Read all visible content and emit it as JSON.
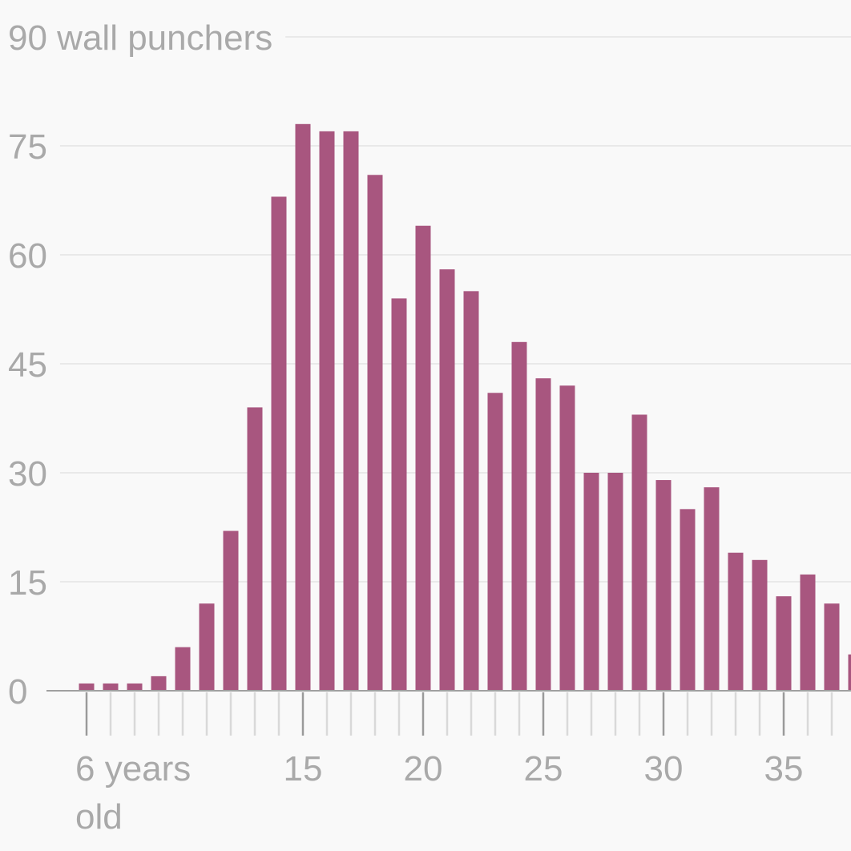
{
  "chart_data": {
    "type": "bar",
    "x": [
      6,
      7,
      8,
      9,
      10,
      11,
      12,
      13,
      14,
      15,
      16,
      17,
      18,
      19,
      20,
      21,
      22,
      23,
      24,
      25,
      26,
      27,
      28,
      29,
      30,
      31,
      32,
      33,
      34,
      35,
      36,
      37,
      38
    ],
    "values": [
      1,
      1,
      1,
      2,
      6,
      12,
      22,
      39,
      68,
      78,
      77,
      77,
      71,
      54,
      64,
      58,
      55,
      41,
      48,
      43,
      42,
      30,
      30,
      38,
      29,
      25,
      28,
      19,
      18,
      13,
      16,
      12,
      5
    ],
    "y_ticks": [
      0,
      15,
      30,
      45,
      60,
      75,
      90
    ],
    "y_tick_labels": [
      "0",
      "15",
      "30",
      "45",
      "60",
      "75",
      "90 wall punchers"
    ],
    "x_major_ticks": [
      6,
      15,
      20,
      25,
      30,
      35
    ],
    "x_tick_labels": [
      {
        "x": 6,
        "lines": [
          "6 years",
          "old"
        ]
      },
      {
        "x": 15,
        "lines": [
          "15"
        ]
      },
      {
        "x": 20,
        "lines": [
          "20"
        ]
      },
      {
        "x": 25,
        "lines": [
          "25"
        ]
      },
      {
        "x": 30,
        "lines": [
          "30"
        ]
      },
      {
        "x": 35,
        "lines": [
          "35"
        ]
      }
    ],
    "ylim": [
      0,
      90
    ],
    "xlim": [
      4.3,
      38.8
    ],
    "bar_color": "#a8567f",
    "grid": true,
    "legend": "none"
  }
}
